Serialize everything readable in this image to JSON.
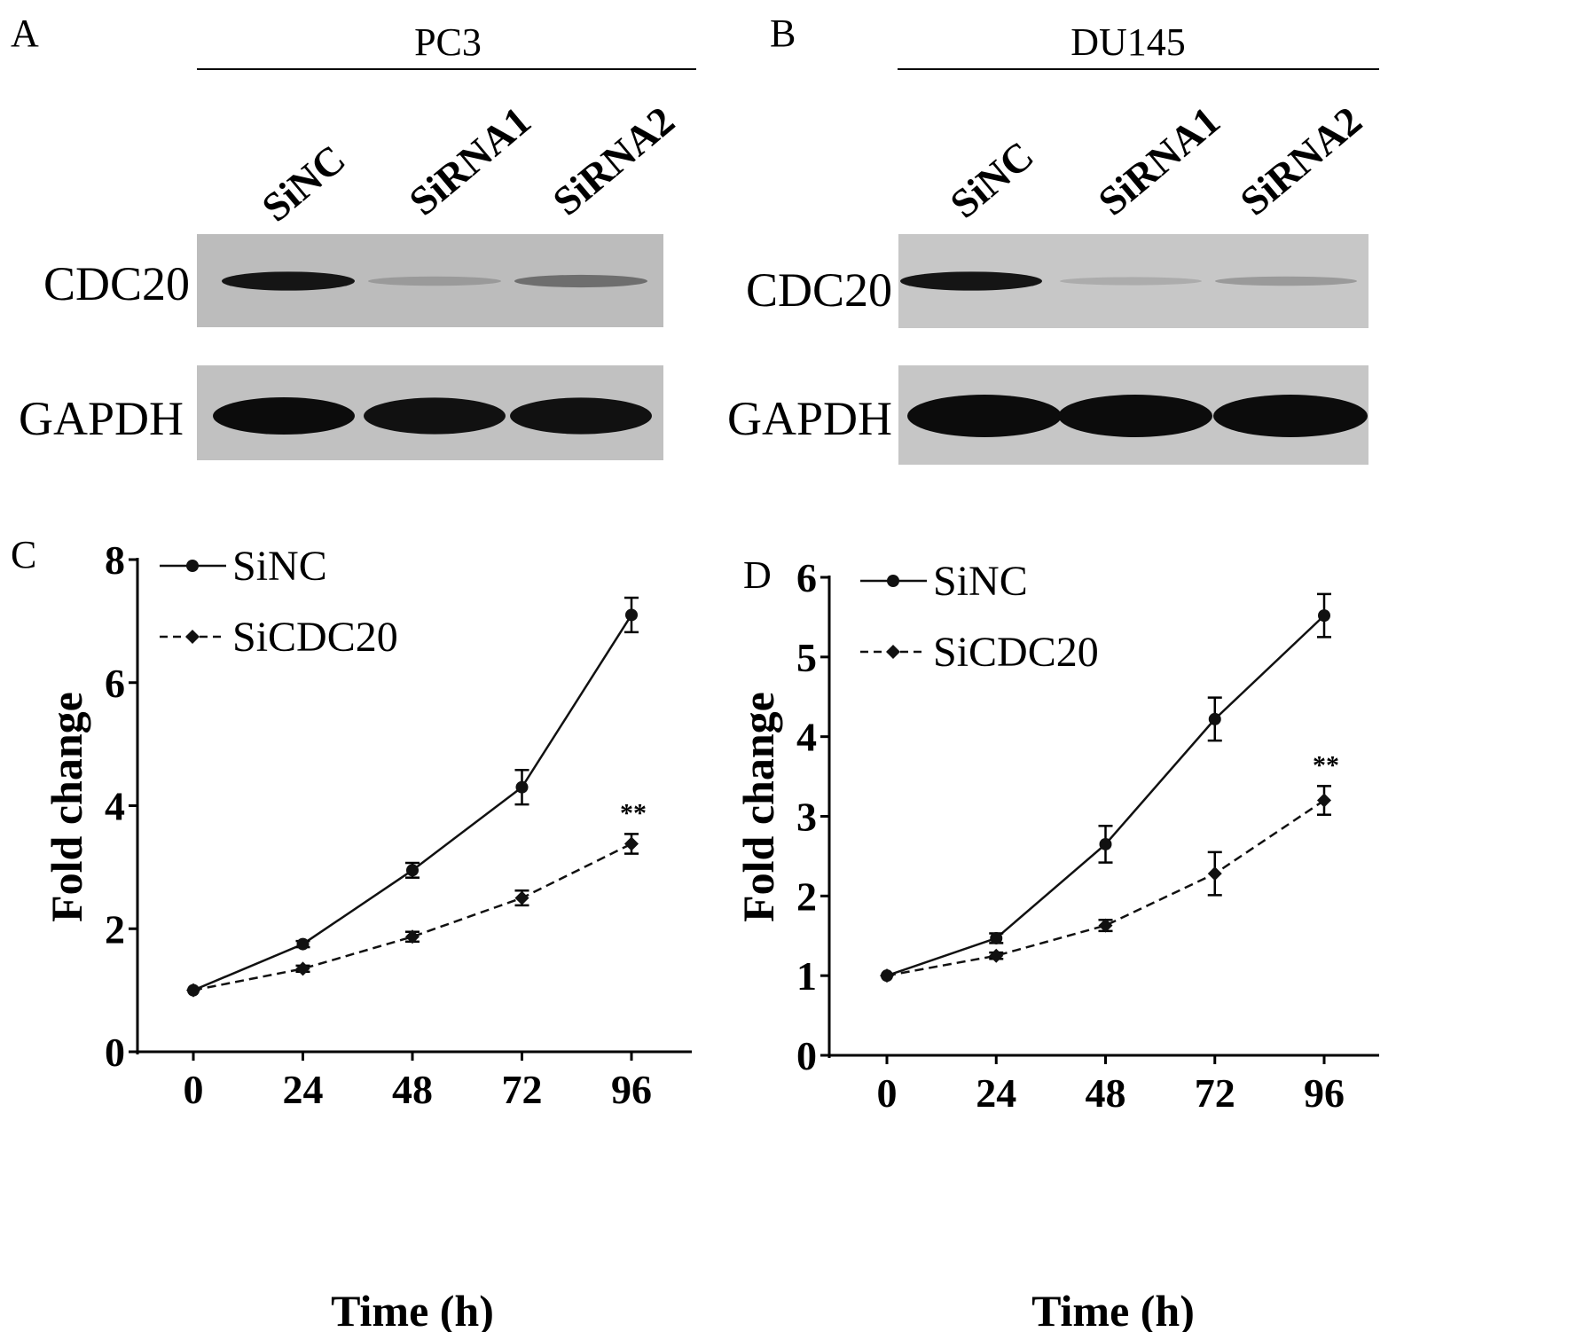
{
  "blots": [
    {
      "panel": "A",
      "cell_line": "PC3",
      "lanes": [
        "SiNC",
        "SiRNA1",
        "SiRNA2"
      ],
      "proteins": [
        "CDC20",
        "GAPDH"
      ],
      "band_intensity": {
        "CDC20": [
          0.95,
          0.2,
          0.45
        ],
        "GAPDH": [
          1.0,
          0.97,
          0.97
        ]
      }
    },
    {
      "panel": "B",
      "cell_line": "DU145",
      "lanes": [
        "SiNC",
        "SiRNA1",
        "SiRNA2"
      ],
      "proteins": [
        "CDC20",
        "GAPDH"
      ],
      "band_intensity": {
        "CDC20": [
          0.95,
          0.1,
          0.2
        ],
        "GAPDH": [
          1.0,
          1.0,
          1.0
        ]
      }
    }
  ],
  "chart_data": [
    {
      "panel": "C",
      "type": "line",
      "xlabel": "Time (h)",
      "ylabel": "Fold change",
      "x": [
        0,
        24,
        48,
        72,
        96
      ],
      "xticks": [
        "0",
        "24",
        "48",
        "72",
        "96"
      ],
      "yticks": [
        "0",
        "2",
        "4",
        "6",
        "8"
      ],
      "ylim": [
        0,
        8
      ],
      "legend_position": "top-left",
      "series": [
        {
          "name": "SiNC",
          "marker": "circle",
          "line": "solid",
          "values": [
            1.0,
            1.75,
            2.95,
            4.3,
            7.1
          ],
          "errors": [
            0.0,
            0.05,
            0.12,
            0.28,
            0.28
          ]
        },
        {
          "name": "SiCDC20",
          "marker": "diamond",
          "line": "dashed",
          "values": [
            1.0,
            1.35,
            1.87,
            2.5,
            3.38
          ],
          "errors": [
            0.0,
            0.05,
            0.08,
            0.12,
            0.16
          ]
        }
      ],
      "annotations": [
        {
          "text": "**",
          "x": 96,
          "series": "SiCDC20"
        }
      ]
    },
    {
      "panel": "D",
      "type": "line",
      "xlabel": "Time (h)",
      "ylabel": "Fold change",
      "x": [
        0,
        24,
        48,
        72,
        96
      ],
      "xticks": [
        "0",
        "24",
        "48",
        "72",
        "96"
      ],
      "yticks": [
        "0",
        "1",
        "2",
        "3",
        "4",
        "5",
        "6"
      ],
      "ylim": [
        0,
        6
      ],
      "legend_position": "top-left",
      "series": [
        {
          "name": "SiNC",
          "marker": "circle",
          "line": "solid",
          "values": [
            1.0,
            1.47,
            2.65,
            4.22,
            5.52
          ],
          "errors": [
            0.0,
            0.06,
            0.23,
            0.27,
            0.27
          ]
        },
        {
          "name": "SiCDC20",
          "marker": "diamond",
          "line": "dashed",
          "values": [
            1.0,
            1.25,
            1.63,
            2.28,
            3.2
          ],
          "errors": [
            0.0,
            0.04,
            0.07,
            0.27,
            0.18
          ]
        }
      ],
      "annotations": [
        {
          "text": "**",
          "x": 96,
          "series": "SiCDC20"
        }
      ]
    }
  ]
}
